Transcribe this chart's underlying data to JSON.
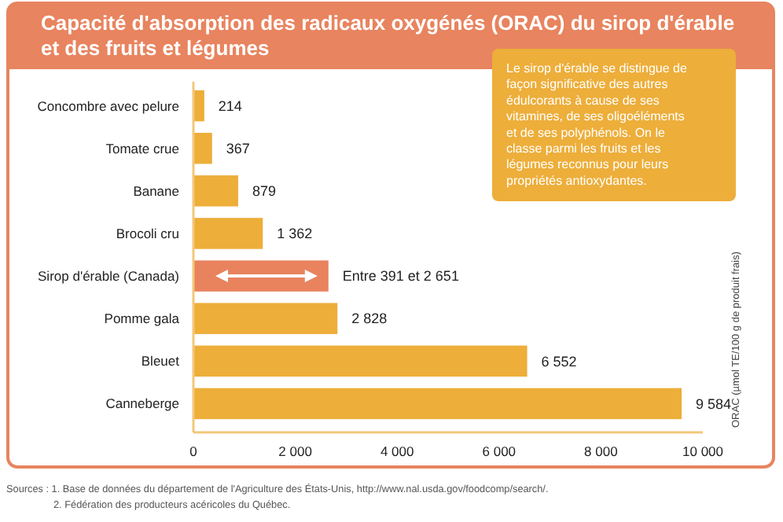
{
  "chart_data": {
    "type": "bar",
    "orientation": "horizontal",
    "title": "Capacité d'absorption des radicaux oxygénés (ORAC) du sirop d'érable et des fruits et légumes",
    "categories": [
      "Concombre avec pelure",
      "Tomate crue",
      "Banane",
      "Brocoli cru",
      "Sirop d'érable (Canada)",
      "Pomme gala",
      "Bleuet",
      "Canneberge"
    ],
    "values": [
      214,
      367,
      879,
      1362,
      2651,
      2828,
      6552,
      9584
    ],
    "colors": [
      "#edae3a",
      "#edae3a",
      "#edae3a",
      "#edae3a",
      "#e8835e",
      "#edae3a",
      "#edae3a",
      "#edae3a"
    ],
    "value_labels": [
      "214",
      "367",
      "879",
      "1 362",
      "Entre 391 et 2 651",
      "2 828",
      "6 552",
      "9 584"
    ],
    "xlim": [
      0,
      10000
    ],
    "xticks": [
      0,
      {
        "value": 2000,
        "label": "2 000"
      },
      {
        "value": 4000,
        "label": "4 000"
      },
      {
        "value": 6000,
        "label": "6 000"
      },
      {
        "value": 8000,
        "label": "8 000"
      },
      {
        "value": 10000,
        "label": "10 000"
      }
    ],
    "ylabel": "ORAC (µmol TE/100 g de produit frais)",
    "annotations": [
      "Le sirop d'érable se distingue de façon significative des autres édulcorants à cause de ses vitamines, de ses oligoéléments et de ses polyphénols. On le classe parmi les fruits et les légumes reconnus pour leurs propriétés antioxydantes.",
      "Sources : 1. Base de données du département de l'Agriculture des États-Unis, http://www.nal.usda.gov/foodcomp/search/.",
      "2. Fédération des producteurs acéricoles du Québec."
    ]
  }
}
